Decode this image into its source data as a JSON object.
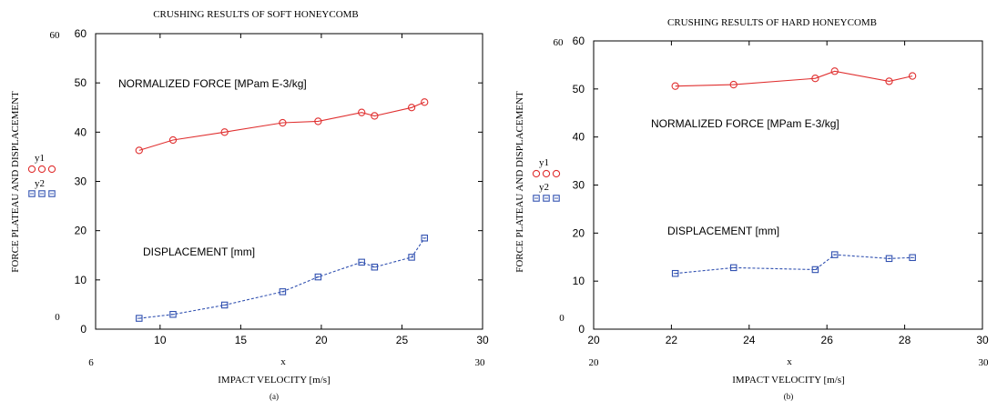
{
  "chart_data": [
    {
      "type": "line",
      "title": "CRUSHING RESULTS OF SOFT HONEYCOMB",
      "xlabel": "IMPACT VELOCITY [m/s]",
      "ylabel": "FORCE PLATEAU AND DISPLACEMENT",
      "caption": "(a)",
      "xlim": [
        6,
        30
      ],
      "ylim": [
        0,
        60
      ],
      "x_ticks": [
        "10",
        "15",
        "20",
        "25",
        "30"
      ],
      "y_ticks": [
        "0",
        "10",
        "20",
        "30",
        "40",
        "50",
        "60"
      ],
      "stray_labels": {
        "inner_x": "x",
        "left_top": "60",
        "left_bottom": "0",
        "bottom_left": "6",
        "bottom_right": "30"
      },
      "legend": {
        "placement": "left",
        "entries": [
          "y1",
          "y2"
        ]
      },
      "annotations": {
        "force": "NORMALIZED FORCE [MPam E-3/kg]",
        "displacement": "DISPLACEMENT [mm]"
      },
      "series": [
        {
          "color": "#e03030",
          "marker": "circle",
          "line": "solid",
          "x": [
            8.7,
            10.8,
            14.0,
            17.6,
            19.8,
            22.5,
            23.3,
            25.6,
            26.4
          ],
          "y": [
            36.3,
            38.4,
            40.0,
            41.9,
            42.2,
            44.0,
            43.3,
            45.0,
            46.1
          ]
        },
        {
          "color": "#3050b0",
          "marker": "square",
          "line": "dashed",
          "x": [
            8.7,
            10.8,
            14.0,
            17.6,
            19.8,
            22.5,
            23.3,
            25.6,
            26.4
          ],
          "y": [
            2.2,
            3.0,
            4.9,
            7.6,
            10.6,
            13.6,
            12.6,
            14.6,
            18.5
          ]
        }
      ]
    },
    {
      "type": "line",
      "title": "CRUSHING RESULTS OF HARD HONEYCOMB",
      "xlabel": "IMPACT VELOCITY [m/s]",
      "ylabel": "FORCE PLATEAU AND DISPLACEMENT",
      "caption": "(b)",
      "xlim": [
        20,
        30
      ],
      "ylim": [
        0,
        60
      ],
      "x_ticks": [
        "20",
        "22",
        "24",
        "26",
        "28",
        "30"
      ],
      "y_ticks": [
        "0",
        "10",
        "20",
        "30",
        "40",
        "50",
        "60"
      ],
      "stray_labels": {
        "inner_x": "x",
        "left_top": "60",
        "left_bottom": "0",
        "bottom_left": "20",
        "bottom_right": "30"
      },
      "legend": {
        "placement": "left",
        "entries": [
          "y1",
          "y2"
        ]
      },
      "annotations": {
        "force": "NORMALIZED FORCE [MPam E-3/kg]",
        "displacement": "DISPLACEMENT [mm]"
      },
      "series": [
        {
          "color": "#e03030",
          "marker": "circle",
          "line": "solid",
          "x": [
            22.1,
            23.6,
            25.7,
            26.2,
            27.6,
            28.2
          ],
          "y": [
            50.6,
            50.9,
            52.2,
            53.7,
            51.6,
            52.7
          ]
        },
        {
          "color": "#3050b0",
          "marker": "square",
          "line": "dashed",
          "x": [
            22.1,
            23.6,
            25.7,
            26.2,
            27.6,
            28.2
          ],
          "y": [
            11.6,
            12.8,
            12.4,
            15.5,
            14.7,
            14.9
          ]
        }
      ]
    }
  ]
}
